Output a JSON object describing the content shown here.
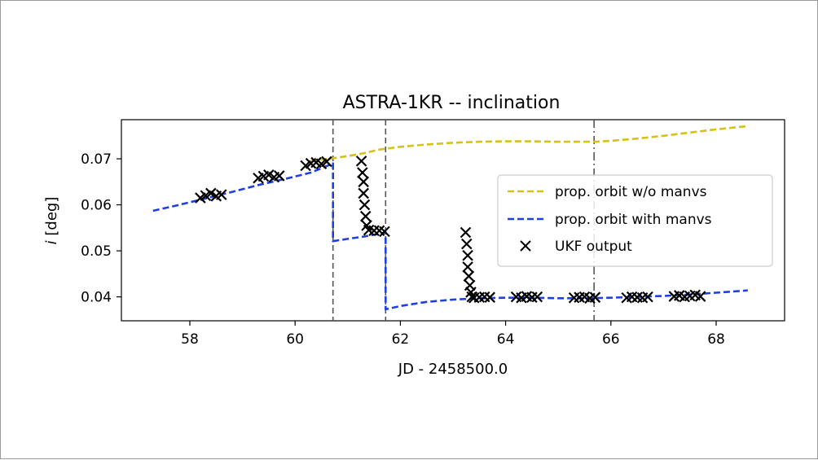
{
  "chart_data": {
    "type": "line",
    "title": "ASTRA-1KR  --  inclination",
    "xlabel": "JD - 2458500.0",
    "ylabel_symbol": "i",
    "ylabel_unit": "[deg]",
    "xlim": [
      56.7,
      69.3
    ],
    "ylim": [
      0.0348,
      0.0785
    ],
    "xticks": [
      58,
      60,
      62,
      64,
      66,
      68
    ],
    "yticks": [
      0.04,
      0.05,
      0.06,
      0.07
    ],
    "ytick_labels": [
      "0.04",
      "0.05",
      "0.06",
      "0.07"
    ],
    "vlines": [
      {
        "x": 60.72,
        "style": "dashed"
      },
      {
        "x": 61.72,
        "style": "dashed"
      },
      {
        "x": 65.68,
        "style": "dashdot"
      }
    ],
    "legend_position": "center-right",
    "series": [
      {
        "name": "prop. orbit w/o manvs",
        "color": "#d4c21a",
        "style": "dashed",
        "x": [
          60.3,
          60.7,
          61.0,
          61.3,
          61.6,
          62.0,
          62.5,
          63.0,
          63.5,
          64.0,
          64.5,
          65.0,
          65.5,
          65.7,
          66.0,
          66.5,
          67.0,
          67.5,
          68.0,
          68.6
        ],
        "y": [
          0.0695,
          0.0701,
          0.0706,
          0.0712,
          0.072,
          0.0726,
          0.0731,
          0.0735,
          0.0737,
          0.0738,
          0.0738,
          0.0737,
          0.0737,
          0.0737,
          0.0739,
          0.0744,
          0.075,
          0.0757,
          0.0764,
          0.0771
        ]
      },
      {
        "name": "prop. orbit with manvs",
        "color": "#1f3fe0",
        "style": "dashed",
        "x": [
          57.3,
          57.8,
          58.3,
          58.8,
          59.3,
          59.8,
          60.3,
          60.72,
          60.72,
          61.0,
          61.3,
          61.6,
          61.72,
          61.72,
          62.0,
          62.5,
          63.0,
          63.5,
          64.0,
          64.5,
          65.0,
          65.5,
          66.0,
          66.5,
          67.0,
          67.5,
          68.0,
          68.6
        ],
        "y": [
          0.0587,
          0.06,
          0.0614,
          0.0628,
          0.0643,
          0.0656,
          0.067,
          0.069,
          0.0521,
          0.0526,
          0.0531,
          0.0537,
          0.054,
          0.0373,
          0.038,
          0.0389,
          0.0394,
          0.0397,
          0.0398,
          0.0398,
          0.0397,
          0.0397,
          0.0398,
          0.04,
          0.0402,
          0.0405,
          0.0409,
          0.0414
        ]
      },
      {
        "name": "UKF output",
        "color": "#000000",
        "marker": "x",
        "x": [
          58.2,
          58.3,
          58.4,
          58.5,
          58.6,
          59.3,
          59.4,
          59.5,
          59.6,
          59.7,
          60.2,
          60.3,
          60.4,
          60.5,
          60.6,
          61.26,
          61.28,
          61.3,
          61.3,
          61.32,
          61.34,
          61.36,
          61.4,
          61.5,
          61.6,
          61.7,
          63.24,
          63.26,
          63.28,
          63.28,
          63.3,
          63.32,
          63.34,
          63.36,
          63.4,
          63.5,
          63.6,
          63.7,
          64.2,
          64.3,
          64.4,
          64.5,
          64.6,
          65.3,
          65.4,
          65.5,
          65.6,
          65.7,
          66.3,
          66.4,
          66.5,
          66.6,
          66.7,
          67.2,
          67.3,
          67.4,
          67.5,
          67.6,
          67.7
        ],
        "y": [
          0.0615,
          0.062,
          0.0625,
          0.0619,
          0.0622,
          0.0658,
          0.0662,
          0.0665,
          0.066,
          0.0663,
          0.0685,
          0.069,
          0.0692,
          0.0689,
          0.0694,
          0.0695,
          0.067,
          0.065,
          0.0625,
          0.06,
          0.0575,
          0.0555,
          0.0545,
          0.0544,
          0.0544,
          0.0542,
          0.054,
          0.0515,
          0.049,
          0.0465,
          0.0445,
          0.0425,
          0.041,
          0.04,
          0.0398,
          0.0399,
          0.04,
          0.0399,
          0.04,
          0.0398,
          0.0401,
          0.0399,
          0.04,
          0.0398,
          0.0399,
          0.04,
          0.0397,
          0.0399,
          0.0398,
          0.04,
          0.0399,
          0.0398,
          0.04,
          0.0401,
          0.0403,
          0.04,
          0.0402,
          0.0404,
          0.0401
        ]
      }
    ]
  }
}
